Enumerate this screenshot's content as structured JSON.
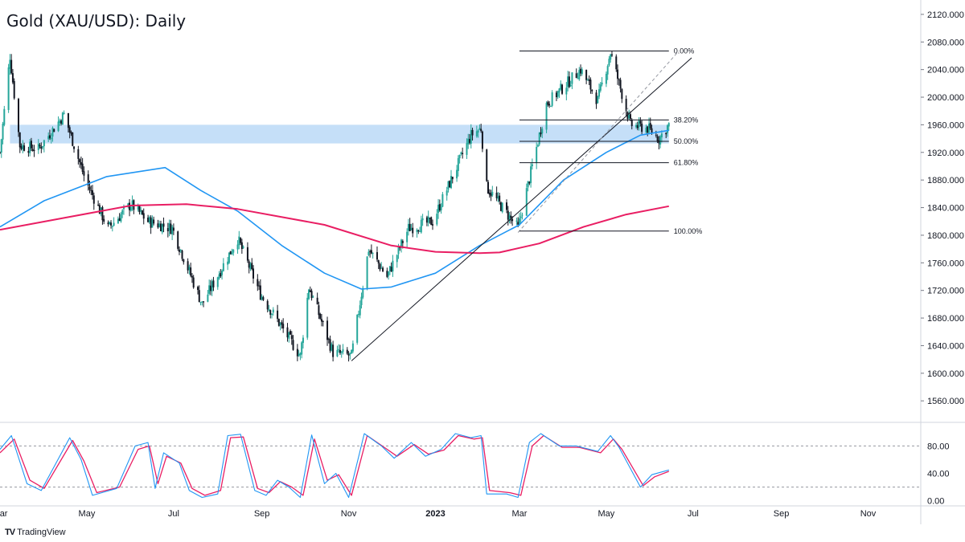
{
  "title": "Gold (XAU/USD): Daily",
  "footer": {
    "brand": "TradingView",
    "logo": "tradingview-logo-icon"
  },
  "colors": {
    "up": "#26a69a",
    "down": "#131722",
    "sma100": "#2196f3",
    "sma200": "#e91e63",
    "zone": "#bbd9f7",
    "stoch_k": "#2196f3",
    "stoch_d": "#e91e63",
    "trendline": "#131722"
  },
  "chart_data": [
    {
      "type": "candlestick",
      "instrument": "Gold (XAU/USD)",
      "timeframe": "Daily",
      "ylim": [
        1530,
        2135
      ],
      "y_ticks": [
        1560,
        1600,
        1640,
        1680,
        1720,
        1760,
        1800,
        1840,
        1880,
        1920,
        1960,
        2000,
        2040,
        2080,
        2120
      ],
      "y_tick_labels": [
        "1560.000",
        "1600.000",
        "1640.000",
        "1680.000",
        "1720.000",
        "1760.000",
        "1800.000",
        "1840.000",
        "1880.000",
        "1920.000",
        "1960.000",
        "2000.000",
        "2040.000",
        "2080.000",
        "2120.000"
      ],
      "x_range": [
        "2022-03-01",
        "2023-12-08"
      ],
      "x_ticks": [
        {
          "date": "2022-03-01",
          "label": "Mar",
          "bold": false
        },
        {
          "date": "2022-05-01",
          "label": "May",
          "bold": false
        },
        {
          "date": "2022-07-01",
          "label": "Jul",
          "bold": false
        },
        {
          "date": "2022-09-01",
          "label": "Sep",
          "bold": false
        },
        {
          "date": "2022-11-01",
          "label": "Nov",
          "bold": false
        },
        {
          "date": "2023-01-01",
          "label": "2023",
          "bold": true
        },
        {
          "date": "2023-03-01",
          "label": "Mar",
          "bold": false
        },
        {
          "date": "2023-05-01",
          "label": "May",
          "bold": false
        },
        {
          "date": "2023-07-01",
          "label": "Jul",
          "bold": false
        },
        {
          "date": "2023-09-01",
          "label": "Sep",
          "bold": false
        },
        {
          "date": "2023-11-01",
          "label": "Nov",
          "bold": false
        }
      ],
      "price_path": [
        [
          "2022-03-01",
          1920
        ],
        [
          "2022-03-08",
          2060
        ],
        [
          "2022-03-15",
          1930
        ],
        [
          "2022-03-28",
          1925
        ],
        [
          "2022-04-15",
          1975
        ],
        [
          "2022-04-30",
          1880
        ],
        [
          "2022-05-16",
          1810
        ],
        [
          "2022-06-01",
          1845
        ],
        [
          "2022-06-13",
          1820
        ],
        [
          "2022-06-30",
          1810
        ],
        [
          "2022-07-21",
          1700
        ],
        [
          "2022-08-15",
          1795
        ],
        [
          "2022-08-31",
          1715
        ],
        [
          "2022-09-28",
          1625
        ],
        [
          "2022-10-04",
          1725
        ],
        [
          "2022-10-21",
          1630
        ],
        [
          "2022-11-03",
          1625
        ],
        [
          "2022-11-15",
          1780
        ],
        [
          "2022-11-28",
          1740
        ],
        [
          "2022-12-13",
          1810
        ],
        [
          "2022-12-30",
          1820
        ],
        [
          "2023-01-26",
          1945
        ],
        [
          "2023-02-02",
          1955
        ],
        [
          "2023-02-06",
          1870
        ],
        [
          "2023-02-28",
          1810
        ],
        [
          "2023-03-20",
          1990
        ],
        [
          "2023-04-13",
          2040
        ],
        [
          "2023-04-25",
          1995
        ],
        [
          "2023-05-04",
          2065
        ],
        [
          "2023-05-18",
          1960
        ],
        [
          "2023-05-30",
          1955
        ],
        [
          "2023-06-07",
          1940
        ],
        [
          "2023-06-14",
          1960
        ]
      ],
      "sma_100": [
        [
          "2022-03-01",
          1812
        ],
        [
          "2022-04-01",
          1850
        ],
        [
          "2022-05-15",
          1885
        ],
        [
          "2022-06-25",
          1898
        ],
        [
          "2022-07-20",
          1865
        ],
        [
          "2022-08-15",
          1835
        ],
        [
          "2022-09-15",
          1785
        ],
        [
          "2022-10-15",
          1745
        ],
        [
          "2022-11-10",
          1722
        ],
        [
          "2022-12-01",
          1725
        ],
        [
          "2023-01-01",
          1745
        ],
        [
          "2023-02-01",
          1785
        ],
        [
          "2023-03-01",
          1815
        ],
        [
          "2023-04-01",
          1880
        ],
        [
          "2023-05-01",
          1920
        ],
        [
          "2023-05-25",
          1945
        ],
        [
          "2023-06-14",
          1952
        ]
      ],
      "sma_200": [
        [
          "2022-03-01",
          1808
        ],
        [
          "2022-04-15",
          1825
        ],
        [
          "2022-06-01",
          1843
        ],
        [
          "2022-07-10",
          1845
        ],
        [
          "2022-08-15",
          1838
        ],
        [
          "2022-10-15",
          1815
        ],
        [
          "2022-12-01",
          1785
        ],
        [
          "2023-01-01",
          1776
        ],
        [
          "2023-02-01",
          1774
        ],
        [
          "2023-02-15",
          1775
        ],
        [
          "2023-03-15",
          1788
        ],
        [
          "2023-04-15",
          1812
        ],
        [
          "2023-05-15",
          1830
        ],
        [
          "2023-06-14",
          1842
        ]
      ],
      "resistance_zone": {
        "from": "2022-03-08",
        "to": "2023-06-14",
        "low": 1933,
        "high": 1960
      },
      "trendline": {
        "start": [
          "2022-11-03",
          1618
        ],
        "end": [
          "2023-06-30",
          2057
        ]
      },
      "fibonacci": {
        "from": "2023-03-01",
        "to": "2023-06-14",
        "anchor_low": [
          "2023-02-28",
          1804
        ],
        "anchor_high": [
          "2023-05-04",
          2067
        ],
        "levels": [
          {
            "label": "0.00%",
            "price": 2067
          },
          {
            "label": "38.20%",
            "price": 1967
          },
          {
            "label": "50.00%",
            "price": 1936
          },
          {
            "label": "61.80%",
            "price": 1905
          },
          {
            "label": "100.00%",
            "price": 1806
          }
        ]
      }
    },
    {
      "type": "line",
      "indicator": "stochastic",
      "ylim": [
        -5,
        112
      ],
      "y_ticks": [
        0,
        40,
        80
      ],
      "y_tick_labels": [
        "0.00",
        "40.00",
        "80.00"
      ],
      "levels": [
        80,
        20
      ],
      "k_path": [
        [
          "2022-03-01",
          75
        ],
        [
          "2022-03-09",
          95
        ],
        [
          "2022-03-20",
          25
        ],
        [
          "2022-03-30",
          15
        ],
        [
          "2022-04-19",
          92
        ],
        [
          "2022-04-27",
          60
        ],
        [
          "2022-05-05",
          8
        ],
        [
          "2022-05-22",
          18
        ],
        [
          "2022-06-04",
          80
        ],
        [
          "2022-06-13",
          85
        ],
        [
          "2022-06-18",
          18
        ],
        [
          "2022-06-24",
          70
        ],
        [
          "2022-07-05",
          55
        ],
        [
          "2022-07-12",
          15
        ],
        [
          "2022-07-21",
          5
        ],
        [
          "2022-08-01",
          10
        ],
        [
          "2022-08-08",
          95
        ],
        [
          "2022-08-17",
          97
        ],
        [
          "2022-08-27",
          15
        ],
        [
          "2022-09-04",
          8
        ],
        [
          "2022-09-12",
          30
        ],
        [
          "2022-09-20",
          20
        ],
        [
          "2022-09-28",
          5
        ],
        [
          "2022-10-06",
          96
        ],
        [
          "2022-10-15",
          25
        ],
        [
          "2022-10-23",
          40
        ],
        [
          "2022-11-01",
          5
        ],
        [
          "2022-11-12",
          98
        ],
        [
          "2022-11-24",
          80
        ],
        [
          "2022-12-03",
          62
        ],
        [
          "2022-12-15",
          85
        ],
        [
          "2022-12-25",
          65
        ],
        [
          "2023-01-05",
          75
        ],
        [
          "2023-01-15",
          98
        ],
        [
          "2023-01-26",
          92
        ],
        [
          "2023-02-02",
          95
        ],
        [
          "2023-02-06",
          10
        ],
        [
          "2023-02-20",
          10
        ],
        [
          "2023-02-28",
          5
        ],
        [
          "2023-03-08",
          85
        ],
        [
          "2023-03-16",
          98
        ],
        [
          "2023-03-29",
          80
        ],
        [
          "2023-04-10",
          80
        ],
        [
          "2023-04-25",
          72
        ],
        [
          "2023-05-04",
          95
        ],
        [
          "2023-05-10",
          78
        ],
        [
          "2023-05-25",
          20
        ],
        [
          "2023-06-02",
          38
        ],
        [
          "2023-06-14",
          45
        ]
      ],
      "d_path": [
        [
          "2022-03-01",
          70
        ],
        [
          "2022-03-11",
          90
        ],
        [
          "2022-03-22",
          30
        ],
        [
          "2022-04-01",
          18
        ],
        [
          "2022-04-21",
          88
        ],
        [
          "2022-04-29",
          58
        ],
        [
          "2022-05-08",
          12
        ],
        [
          "2022-05-24",
          20
        ],
        [
          "2022-06-06",
          75
        ],
        [
          "2022-06-14",
          80
        ],
        [
          "2022-06-20",
          25
        ],
        [
          "2022-06-26",
          65
        ],
        [
          "2022-07-06",
          55
        ],
        [
          "2022-07-14",
          18
        ],
        [
          "2022-07-23",
          8
        ],
        [
          "2022-08-03",
          15
        ],
        [
          "2022-08-10",
          92
        ],
        [
          "2022-08-19",
          93
        ],
        [
          "2022-08-29",
          18
        ],
        [
          "2022-09-06",
          12
        ],
        [
          "2022-09-14",
          28
        ],
        [
          "2022-09-22",
          20
        ],
        [
          "2022-09-30",
          8
        ],
        [
          "2022-10-08",
          90
        ],
        [
          "2022-10-17",
          30
        ],
        [
          "2022-10-25",
          38
        ],
        [
          "2022-11-03",
          8
        ],
        [
          "2022-11-14",
          95
        ],
        [
          "2022-11-26",
          78
        ],
        [
          "2022-12-05",
          65
        ],
        [
          "2022-12-17",
          82
        ],
        [
          "2022-12-27",
          68
        ],
        [
          "2023-01-07",
          74
        ],
        [
          "2023-01-17",
          95
        ],
        [
          "2023-01-28",
          90
        ],
        [
          "2023-02-03",
          92
        ],
        [
          "2023-02-08",
          15
        ],
        [
          "2023-02-22",
          12
        ],
        [
          "2023-03-02",
          8
        ],
        [
          "2023-03-10",
          80
        ],
        [
          "2023-03-18",
          95
        ],
        [
          "2023-03-31",
          78
        ],
        [
          "2023-04-12",
          78
        ],
        [
          "2023-04-27",
          70
        ],
        [
          "2023-05-06",
          90
        ],
        [
          "2023-05-12",
          75
        ],
        [
          "2023-05-27",
          22
        ],
        [
          "2023-06-04",
          35
        ],
        [
          "2023-06-14",
          43
        ]
      ]
    }
  ]
}
